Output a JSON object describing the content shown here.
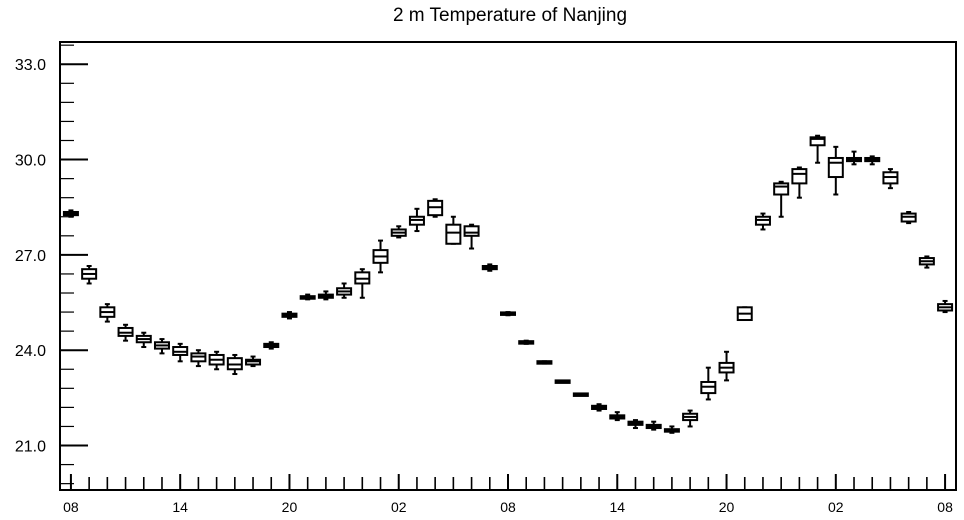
{
  "chart_data": {
    "type": "box",
    "title": "2 m Temperature of Nanjing",
    "xlabel": "",
    "ylabel": "",
    "ylim": [
      19.6,
      33.7
    ],
    "yticks": [
      "33.0",
      "30.0",
      "27.0",
      "24.0",
      "21.0"
    ],
    "ytick_values": [
      33.0,
      30.0,
      27.0,
      24.0,
      21.0
    ],
    "xlim": [
      -0.6,
      48.6
    ],
    "x_major_ticks": [
      {
        "label": "08",
        "x": 0
      },
      {
        "label": "14",
        "x": 6
      },
      {
        "label": "20",
        "x": 12
      },
      {
        "label": "02",
        "x": 18
      },
      {
        "label": "08",
        "x": 24
      },
      {
        "label": "14",
        "x": 30
      },
      {
        "label": "20",
        "x": 36
      },
      {
        "label": "02",
        "x": 42
      },
      {
        "label": "08",
        "x": 48
      }
    ],
    "grid": false,
    "boxes": [
      {
        "x": 0,
        "min": 28.2,
        "q1": 28.25,
        "median": 28.3,
        "q3": 28.35,
        "max": 28.4
      },
      {
        "x": 1,
        "min": 26.1,
        "q1": 26.25,
        "median": 26.4,
        "q3": 26.55,
        "max": 26.65
      },
      {
        "x": 2,
        "min": 24.9,
        "q1": 25.05,
        "median": 25.2,
        "q3": 25.35,
        "max": 25.45
      },
      {
        "x": 3,
        "min": 24.3,
        "q1": 24.45,
        "median": 24.55,
        "q3": 24.7,
        "max": 24.8
      },
      {
        "x": 4,
        "min": 24.1,
        "q1": 24.25,
        "median": 24.35,
        "q3": 24.45,
        "max": 24.55
      },
      {
        "x": 5,
        "min": 23.9,
        "q1": 24.05,
        "median": 24.15,
        "q3": 24.25,
        "max": 24.35
      },
      {
        "x": 6,
        "min": 23.65,
        "q1": 23.85,
        "median": 23.95,
        "q3": 24.1,
        "max": 24.2
      },
      {
        "x": 7,
        "min": 23.5,
        "q1": 23.65,
        "median": 23.8,
        "q3": 23.9,
        "max": 24.0
      },
      {
        "x": 8,
        "min": 23.4,
        "q1": 23.55,
        "median": 23.7,
        "q3": 23.85,
        "max": 23.95
      },
      {
        "x": 9,
        "min": 23.25,
        "q1": 23.4,
        "median": 23.55,
        "q3": 23.75,
        "max": 23.85
      },
      {
        "x": 10,
        "min": 23.5,
        "q1": 23.55,
        "median": 23.65,
        "q3": 23.7,
        "max": 23.8
      },
      {
        "x": 11,
        "min": 24.05,
        "q1": 24.1,
        "median": 24.15,
        "q3": 24.2,
        "max": 24.25
      },
      {
        "x": 12,
        "min": 25.0,
        "q1": 25.05,
        "median": 25.1,
        "q3": 25.15,
        "max": 25.2
      },
      {
        "x": 13,
        "min": 25.6,
        "q1": 25.62,
        "median": 25.65,
        "q3": 25.7,
        "max": 25.75
      },
      {
        "x": 14,
        "min": 25.6,
        "q1": 25.65,
        "median": 25.7,
        "q3": 25.75,
        "max": 25.85
      },
      {
        "x": 15,
        "min": 25.65,
        "q1": 25.75,
        "median": 25.85,
        "q3": 25.95,
        "max": 26.1
      },
      {
        "x": 16,
        "min": 25.65,
        "q1": 26.1,
        "median": 26.25,
        "q3": 26.45,
        "max": 26.55
      },
      {
        "x": 17,
        "min": 26.45,
        "q1": 26.75,
        "median": 26.95,
        "q3": 27.15,
        "max": 27.45
      },
      {
        "x": 18,
        "min": 27.55,
        "q1": 27.6,
        "median": 27.7,
        "q3": 27.8,
        "max": 27.9
      },
      {
        "x": 19,
        "min": 27.75,
        "q1": 27.95,
        "median": 28.1,
        "q3": 28.2,
        "max": 28.45
      },
      {
        "x": 20,
        "min": 28.2,
        "q1": 28.25,
        "median": 28.5,
        "q3": 28.7,
        "max": 28.75
      },
      {
        "x": 21,
        "min": 27.35,
        "q1": 27.35,
        "median": 27.7,
        "q3": 27.95,
        "max": 28.2
      },
      {
        "x": 22,
        "min": 27.2,
        "q1": 27.6,
        "median": 27.7,
        "q3": 27.9,
        "max": 27.95
      },
      {
        "x": 23,
        "min": 26.5,
        "q1": 26.55,
        "median": 26.6,
        "q3": 26.65,
        "max": 26.7
      },
      {
        "x": 24,
        "min": 25.1,
        "q1": 25.12,
        "median": 25.15,
        "q3": 25.18,
        "max": 25.2
      },
      {
        "x": 25,
        "min": 24.2,
        "q1": 24.22,
        "median": 24.25,
        "q3": 24.27,
        "max": 24.3
      },
      {
        "x": 26,
        "min": 23.58,
        "q1": 23.6,
        "median": 23.62,
        "q3": 23.63,
        "max": 23.65
      },
      {
        "x": 27,
        "min": 23.0,
        "q1": 23.0,
        "median": 23.01,
        "q3": 23.02,
        "max": 23.02
      },
      {
        "x": 28,
        "min": 22.58,
        "q1": 22.59,
        "median": 22.6,
        "q3": 22.61,
        "max": 22.62
      },
      {
        "x": 29,
        "min": 22.1,
        "q1": 22.15,
        "median": 22.2,
        "q3": 22.25,
        "max": 22.3
      },
      {
        "x": 30,
        "min": 21.8,
        "q1": 21.85,
        "median": 21.9,
        "q3": 21.95,
        "max": 22.05
      },
      {
        "x": 31,
        "min": 21.55,
        "q1": 21.65,
        "median": 21.7,
        "q3": 21.75,
        "max": 21.8
      },
      {
        "x": 32,
        "min": 21.5,
        "q1": 21.55,
        "median": 21.6,
        "q3": 21.65,
        "max": 21.75
      },
      {
        "x": 33,
        "min": 21.4,
        "q1": 21.45,
        "median": 21.48,
        "q3": 21.5,
        "max": 21.6
      },
      {
        "x": 34,
        "min": 21.6,
        "q1": 21.8,
        "median": 21.9,
        "q3": 22.0,
        "max": 22.1
      },
      {
        "x": 35,
        "min": 22.45,
        "q1": 22.65,
        "median": 22.85,
        "q3": 23.0,
        "max": 23.45
      },
      {
        "x": 36,
        "min": 23.05,
        "q1": 23.3,
        "median": 23.45,
        "q3": 23.6,
        "max": 23.95
      },
      {
        "x": 37,
        "min": 24.95,
        "q1": 24.95,
        "median": 25.15,
        "q3": 25.35,
        "max": 25.35
      },
      {
        "x": 38,
        "min": 27.8,
        "q1": 27.95,
        "median": 28.1,
        "q3": 28.2,
        "max": 28.3
      },
      {
        "x": 39,
        "min": 28.2,
        "q1": 28.9,
        "median": 29.15,
        "q3": 29.25,
        "max": 29.3
      },
      {
        "x": 40,
        "min": 28.8,
        "q1": 29.25,
        "median": 29.55,
        "q3": 29.7,
        "max": 29.75
      },
      {
        "x": 41,
        "min": 29.9,
        "q1": 30.45,
        "median": 30.65,
        "q3": 30.7,
        "max": 30.75
      },
      {
        "x": 42,
        "min": 28.9,
        "q1": 29.45,
        "median": 29.9,
        "q3": 30.05,
        "max": 30.4
      },
      {
        "x": 43,
        "min": 29.85,
        "q1": 29.95,
        "median": 30.0,
        "q3": 30.05,
        "max": 30.25
      },
      {
        "x": 44,
        "min": 29.85,
        "q1": 29.95,
        "median": 30.0,
        "q3": 30.05,
        "max": 30.1
      },
      {
        "x": 45,
        "min": 29.1,
        "q1": 29.25,
        "median": 29.45,
        "q3": 29.6,
        "max": 29.7
      },
      {
        "x": 46,
        "min": 28.0,
        "q1": 28.05,
        "median": 28.2,
        "q3": 28.3,
        "max": 28.35
      },
      {
        "x": 47,
        "min": 26.6,
        "q1": 26.7,
        "median": 26.8,
        "q3": 26.9,
        "max": 26.95
      },
      {
        "x": 48,
        "min": 25.2,
        "q1": 25.25,
        "median": 25.35,
        "q3": 25.45,
        "max": 25.55
      }
    ]
  }
}
